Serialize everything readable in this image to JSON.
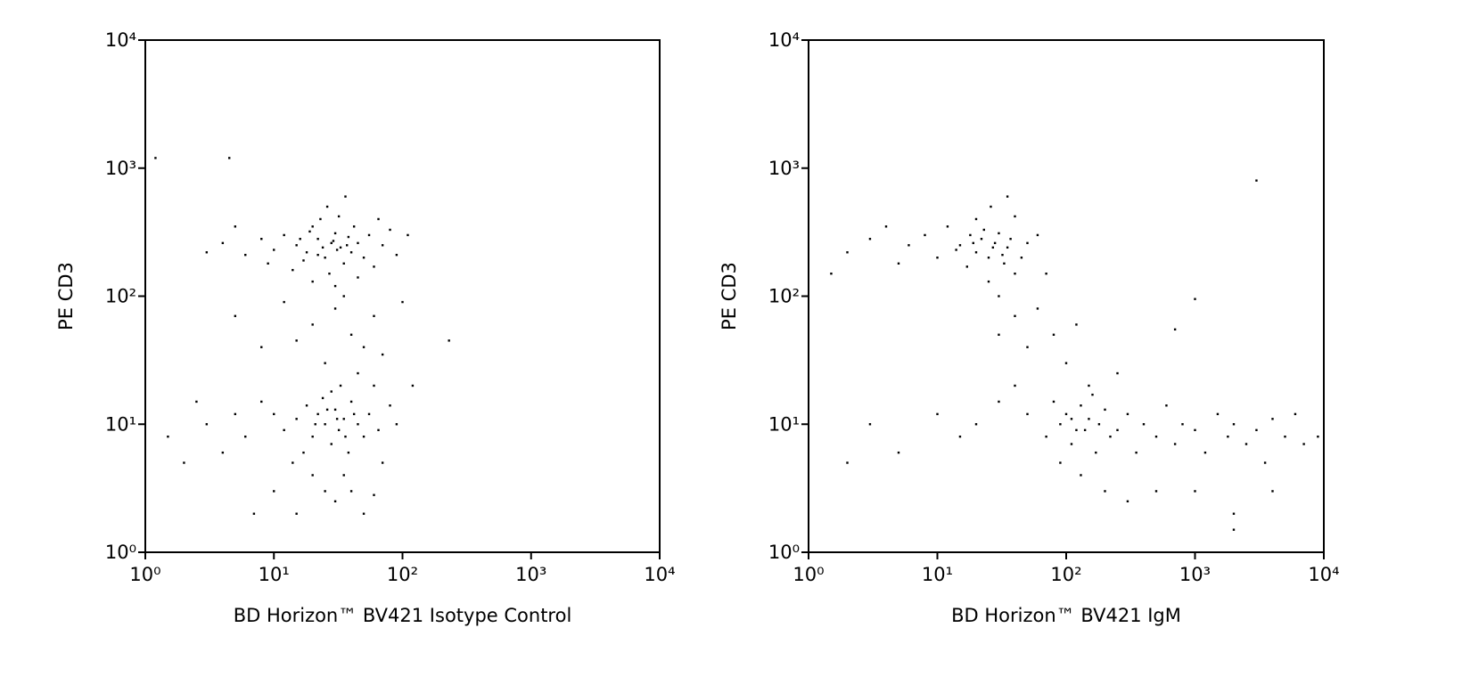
{
  "chart_data": [
    {
      "type": "scatter",
      "xlabel": "BD Horizon™ BV421 Isotype Control",
      "ylabel": "PE CD3",
      "xscale": "log",
      "yscale": "log",
      "color": "#000000",
      "xlim": [
        1,
        10000
      ],
      "ylim": [
        1,
        10000
      ],
      "xticks": [
        {
          "value": 1,
          "label": "10⁰"
        },
        {
          "value": 10,
          "label": "10¹"
        },
        {
          "value": 100,
          "label": "10²"
        },
        {
          "value": 1000,
          "label": "10³"
        },
        {
          "value": 10000,
          "label": "10⁴"
        }
      ],
      "yticks": [
        {
          "value": 1,
          "label": "10⁰"
        },
        {
          "value": 10,
          "label": "10¹"
        },
        {
          "value": 100,
          "label": "10²"
        },
        {
          "value": 1000,
          "label": "10³"
        },
        {
          "value": 10000,
          "label": "10⁴"
        }
      ],
      "x": [
        12,
        15,
        18,
        20,
        22,
        25,
        28,
        30,
        33,
        35,
        38,
        40,
        45,
        50,
        55,
        60,
        17,
        23,
        27,
        32,
        42,
        14,
        10,
        8,
        6,
        5,
        4,
        3,
        70,
        80,
        90,
        110,
        26,
        36,
        20,
        30,
        45,
        65,
        9,
        19,
        24,
        29,
        31,
        37,
        22,
        16,
        30,
        20,
        40,
        50,
        15,
        25,
        60,
        70,
        35,
        100,
        12,
        8,
        5,
        10,
        12,
        15,
        18,
        20,
        22,
        25,
        28,
        30,
        32,
        35,
        38,
        40,
        45,
        50,
        55,
        60,
        65,
        70,
        80,
        90,
        8,
        6,
        5,
        4,
        3,
        2.5,
        2,
        1.5,
        14,
        20,
        25,
        30,
        35,
        40,
        50,
        60,
        15,
        10,
        7,
        24,
        33,
        28,
        45,
        17,
        26,
        36,
        42,
        21,
        31,
        120,
        230,
        1.2,
        4.5
      ],
      "y": [
        300,
        250,
        220,
        350,
        280,
        200,
        260,
        310,
        240,
        180,
        290,
        220,
        260,
        200,
        300,
        170,
        190,
        400,
        150,
        420,
        350,
        160,
        230,
        280,
        210,
        350,
        260,
        220,
        250,
        330,
        210,
        300,
        500,
        600,
        130,
        120,
        140,
        400,
        180,
        320,
        240,
        270,
        230,
        250,
        210,
        280,
        80,
        60,
        50,
        40,
        45,
        30,
        70,
        35,
        100,
        90,
        90,
        40,
        70,
        12,
        9,
        11,
        14,
        8,
        12,
        10,
        7,
        13,
        9,
        11,
        6,
        15,
        10,
        8,
        12,
        20,
        9,
        5,
        14,
        10,
        15,
        8,
        12,
        6,
        10,
        15,
        5,
        8,
        5,
        4,
        3,
        2.5,
        4,
        3,
        2,
        2.8,
        2,
        3,
        2,
        16,
        20,
        18,
        25,
        6,
        13,
        8,
        12,
        10,
        11,
        20,
        45,
        1200,
        1200
      ]
    },
    {
      "type": "scatter",
      "xlabel": "BD Horizon™ BV421 IgM",
      "ylabel": "PE CD3",
      "xscale": "log",
      "yscale": "log",
      "color": "#000000",
      "xlim": [
        1,
        10000
      ],
      "ylim": [
        1,
        10000
      ],
      "xticks": [
        {
          "value": 1,
          "label": "10⁰"
        },
        {
          "value": 10,
          "label": "10¹"
        },
        {
          "value": 100,
          "label": "10²"
        },
        {
          "value": 1000,
          "label": "10³"
        },
        {
          "value": 10000,
          "label": "10⁴"
        }
      ],
      "yticks": [
        {
          "value": 1,
          "label": "10⁰"
        },
        {
          "value": 10,
          "label": "10¹"
        },
        {
          "value": 100,
          "label": "10²"
        },
        {
          "value": 1000,
          "label": "10³"
        },
        {
          "value": 10000,
          "label": "10⁴"
        }
      ],
      "x": [
        15,
        18,
        20,
        22,
        25,
        28,
        30,
        33,
        35,
        40,
        45,
        50,
        12,
        10,
        8,
        6,
        5,
        4,
        3,
        2,
        1.5,
        60,
        70,
        25,
        30,
        20,
        40,
        17,
        23,
        27,
        32,
        37,
        14,
        26,
        35,
        19,
        60,
        80,
        50,
        100,
        40,
        120,
        30,
        50,
        70,
        80,
        90,
        100,
        110,
        120,
        130,
        150,
        170,
        180,
        200,
        220,
        250,
        300,
        350,
        400,
        500,
        600,
        700,
        800,
        1000,
        1200,
        1500,
        1800,
        2000,
        2500,
        3000,
        3500,
        4000,
        5000,
        6000,
        7000,
        40,
        30,
        20,
        15,
        10,
        5,
        3,
        2,
        130,
        200,
        300,
        150,
        250,
        500,
        1000,
        2000,
        4000,
        90,
        160,
        110,
        140,
        3000,
        2000,
        9000,
        700,
        1000
      ],
      "y": [
        250,
        300,
        220,
        280,
        200,
        260,
        310,
        180,
        240,
        150,
        200,
        260,
        350,
        200,
        300,
        250,
        180,
        350,
        280,
        220,
        150,
        300,
        150,
        130,
        100,
        400,
        420,
        170,
        330,
        240,
        210,
        280,
        230,
        500,
        600,
        260,
        80,
        50,
        40,
        30,
        70,
        60,
        50,
        12,
        8,
        15,
        10,
        12,
        7,
        9,
        14,
        11,
        6,
        10,
        13,
        8,
        9,
        12,
        6,
        10,
        8,
        14,
        7,
        10,
        9,
        6,
        12,
        8,
        10,
        7,
        9,
        5,
        11,
        8,
        12,
        7,
        20,
        15,
        10,
        8,
        12,
        6,
        10,
        5,
        4,
        3,
        2.5,
        20,
        25,
        3,
        3,
        2,
        3,
        5,
        17,
        11,
        9,
        800,
        1.5,
        8,
        55,
        95
      ]
    }
  ]
}
